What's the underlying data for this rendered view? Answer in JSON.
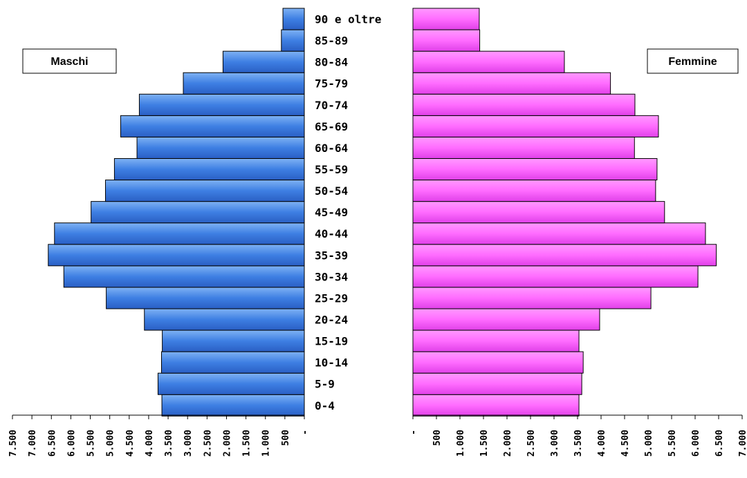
{
  "chart_data": {
    "type": "bar",
    "categories": [
      "0-4",
      "5-9",
      "10-14",
      "15-19",
      "20-24",
      "25-29",
      "30-34",
      "35-39",
      "40-44",
      "45-49",
      "50-54",
      "55-59",
      "60-64",
      "65-69",
      "70-74",
      "75-79",
      "80-84",
      "85-89",
      "90 e oltre"
    ],
    "series": [
      {
        "name": "Maschi",
        "color": "#3a7be0",
        "values": [
          3660,
          3760,
          3670,
          3650,
          4110,
          5090,
          6180,
          6580,
          6420,
          5480,
          5110,
          4880,
          4300,
          4720,
          4240,
          3110,
          2090,
          590,
          550
        ]
      },
      {
        "name": "Femmine",
        "color": "#ff66ff",
        "values": [
          3530,
          3590,
          3620,
          3530,
          3970,
          5060,
          6060,
          6450,
          6220,
          5350,
          5160,
          5190,
          4710,
          5220,
          4720,
          4200,
          3220,
          1420,
          1410
        ]
      }
    ],
    "x_left": {
      "range": [
        7500,
        0
      ],
      "ticks": [
        "7.500",
        "7.000",
        "6.500",
        "6.000",
        "5.500",
        "5.000",
        "4.500",
        "4.000",
        "3.500",
        "3.000",
        "2.500",
        "2.000",
        "1.500",
        "1.000",
        "500",
        "-"
      ]
    },
    "x_right": {
      "range": [
        0,
        7000
      ],
      "ticks": [
        "-",
        "500",
        "1.000",
        "1.500",
        "2.000",
        "2.500",
        "3.000",
        "3.500",
        "4.000",
        "4.500",
        "5.000",
        "5.500",
        "6.000",
        "6.500",
        "7.000"
      ]
    },
    "legend_left": "Maschi",
    "legend_right": "Femmine"
  }
}
